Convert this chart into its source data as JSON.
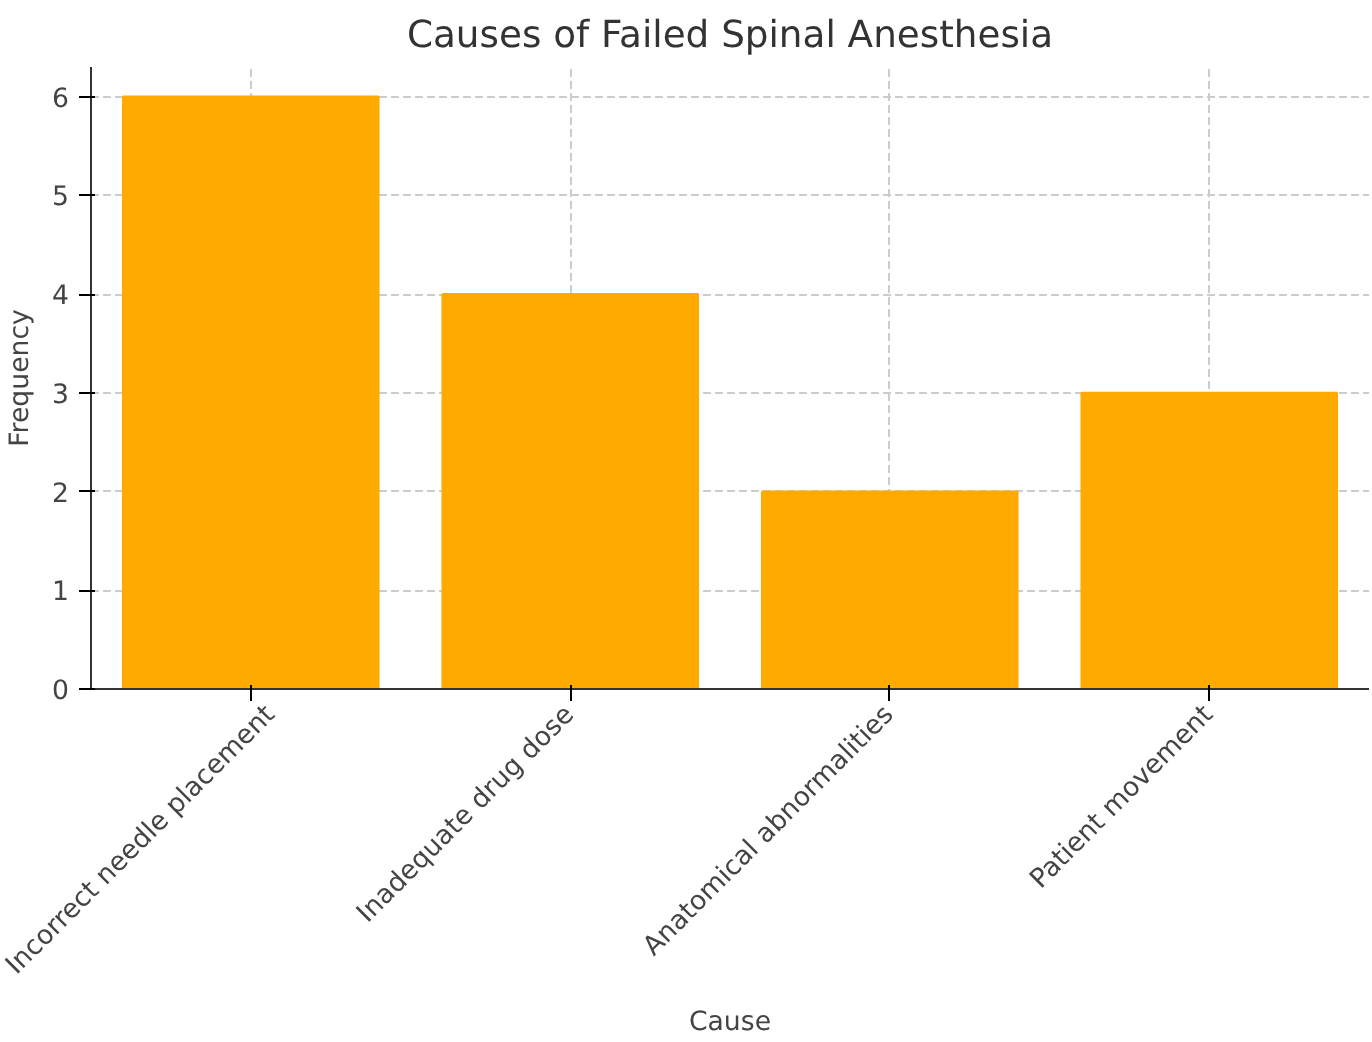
{
  "chart_data": {
    "type": "bar",
    "title": "Causes of Failed Spinal Anesthesia",
    "xlabel": "Cause",
    "ylabel": "Frequency",
    "categories": [
      "Incorrect needle placement",
      "Inadequate drug dose",
      "Anatomical abnormalities",
      "Patient movement"
    ],
    "values": [
      6,
      4,
      2,
      3
    ],
    "color": "#ffaa00",
    "ylim": [
      0,
      6.3
    ],
    "yticks": [
      0,
      1,
      2,
      3,
      4,
      5,
      6
    ],
    "grid": true
  }
}
